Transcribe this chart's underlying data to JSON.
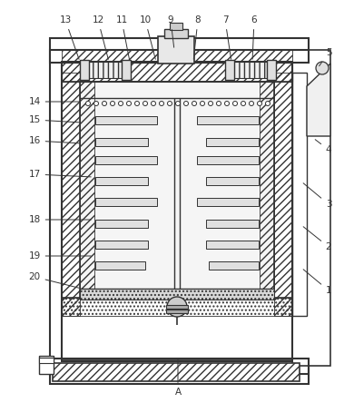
{
  "bg_color": "#ffffff",
  "lc": "#333333",
  "label_data": [
    [
      "1",
      362,
      320,
      332,
      295
    ],
    [
      "2",
      362,
      272,
      332,
      248
    ],
    [
      "3",
      362,
      225,
      332,
      200
    ],
    [
      "4",
      362,
      165,
      345,
      152
    ],
    [
      "5",
      362,
      58,
      350,
      75
    ],
    [
      "6",
      280,
      22,
      278,
      68
    ],
    [
      "7",
      248,
      22,
      255,
      68
    ],
    [
      "8",
      218,
      22,
      213,
      68
    ],
    [
      "9",
      188,
      22,
      192,
      55
    ],
    [
      "10",
      160,
      22,
      172,
      68
    ],
    [
      "11",
      134,
      22,
      143,
      68
    ],
    [
      "12",
      108,
      22,
      120,
      68
    ],
    [
      "13",
      72,
      22,
      88,
      68
    ],
    [
      "14",
      38,
      112,
      90,
      112
    ],
    [
      "15",
      38,
      132,
      90,
      135
    ],
    [
      "16",
      38,
      155,
      90,
      158
    ],
    [
      "17",
      38,
      192,
      103,
      195
    ],
    [
      "18",
      38,
      242,
      103,
      242
    ],
    [
      "19",
      38,
      282,
      103,
      282
    ],
    [
      "20",
      38,
      305,
      90,
      318
    ],
    [
      "A",
      196,
      432,
      196,
      392
    ]
  ]
}
